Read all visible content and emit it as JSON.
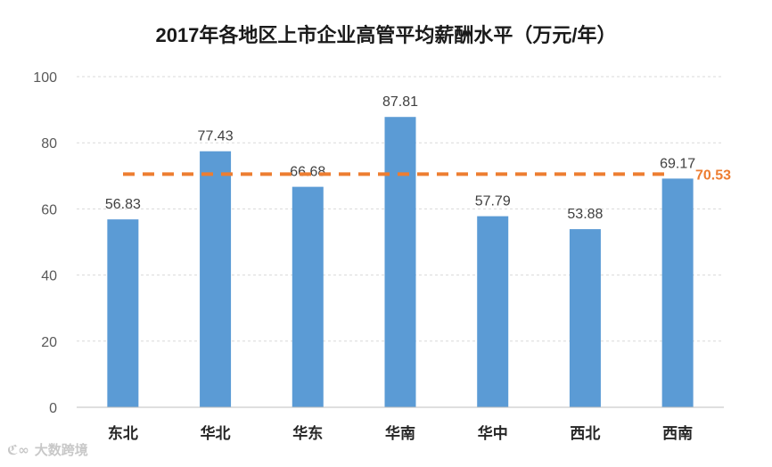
{
  "title": "2017年各地区上市企业高管平均薪酬水平（万元/年）",
  "chart_data": {
    "type": "bar",
    "title": "2017年各地区上市企业高管平均薪酬水平（万元/年）",
    "categories": [
      "东北",
      "华北",
      "华东",
      "华南",
      "华中",
      "西北",
      "西南"
    ],
    "values": [
      56.83,
      77.43,
      66.68,
      87.81,
      57.79,
      53.88,
      69.17
    ],
    "value_labels": [
      "56.83",
      "77.43",
      "66.68",
      "87.81",
      "57.79",
      "53.88",
      "69.17"
    ],
    "ylim": [
      0,
      100
    ],
    "yticks": [
      0,
      20,
      40,
      60,
      80,
      100
    ],
    "ytick_labels": [
      "0",
      "20",
      "40",
      "60",
      "80",
      "100"
    ],
    "grid": true,
    "bar_color": "#5b9bd5",
    "reference_line": {
      "value": 70.53,
      "label": "70.53",
      "color": "#ed7d31",
      "style": "dashed"
    }
  },
  "watermark": {
    "logo": "ℭ∞",
    "text": "大数跨境"
  }
}
